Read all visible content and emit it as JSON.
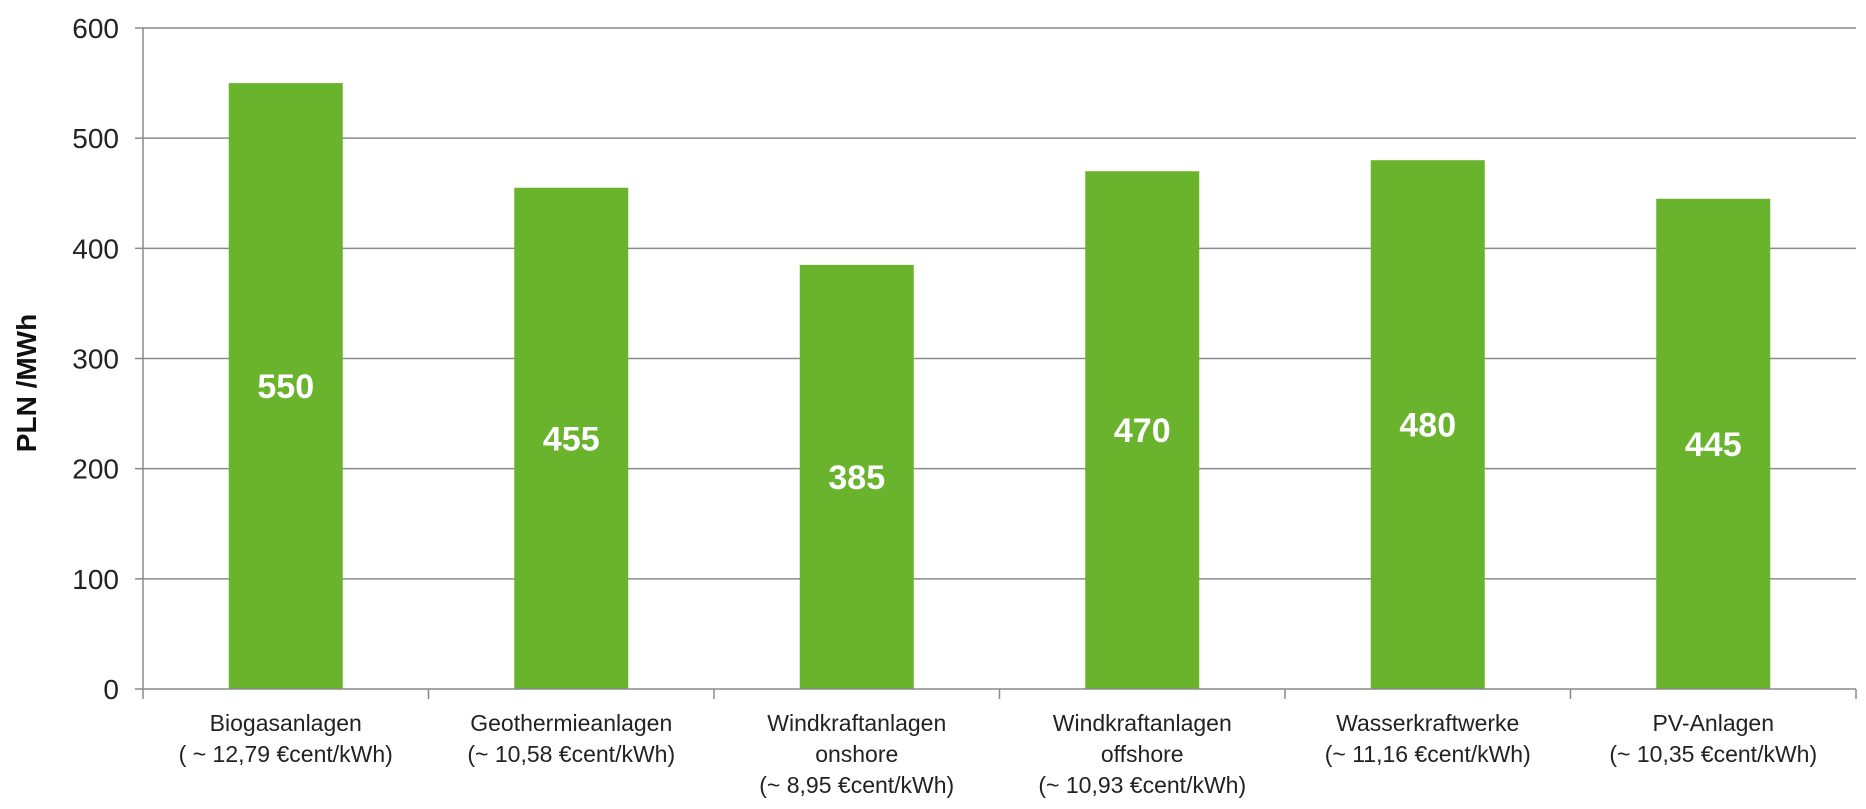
{
  "chart_data": {
    "type": "bar",
    "ylabel": "PLN /MWh",
    "ylim": [
      0,
      600
    ],
    "yticks": [
      0,
      100,
      200,
      300,
      400,
      500,
      600
    ],
    "grid": true,
    "bar_color": "#6ab42d",
    "categories": [
      [
        "Biogasanlagen",
        "( ~ 12,79 €cent/kWh)"
      ],
      [
        "Geothermieanlagen",
        "(~ 10,58 €cent/kWh)"
      ],
      [
        "Windkraftanlagen",
        "onshore",
        "(~ 8,95 €cent/kWh)"
      ],
      [
        "Windkraftanlagen",
        "offshore",
        "(~ 10,93 €cent/kWh)"
      ],
      [
        "Wasserkraftwerke",
        "(~ 11,16 €cent/kWh)"
      ],
      [
        "PV-Anlagen",
        "(~ 10,35 €cent/kWh)"
      ]
    ],
    "values": [
      550,
      455,
      385,
      470,
      480,
      445
    ],
    "data_labels": [
      "550",
      "455",
      "385",
      "470",
      "480",
      "445"
    ]
  }
}
